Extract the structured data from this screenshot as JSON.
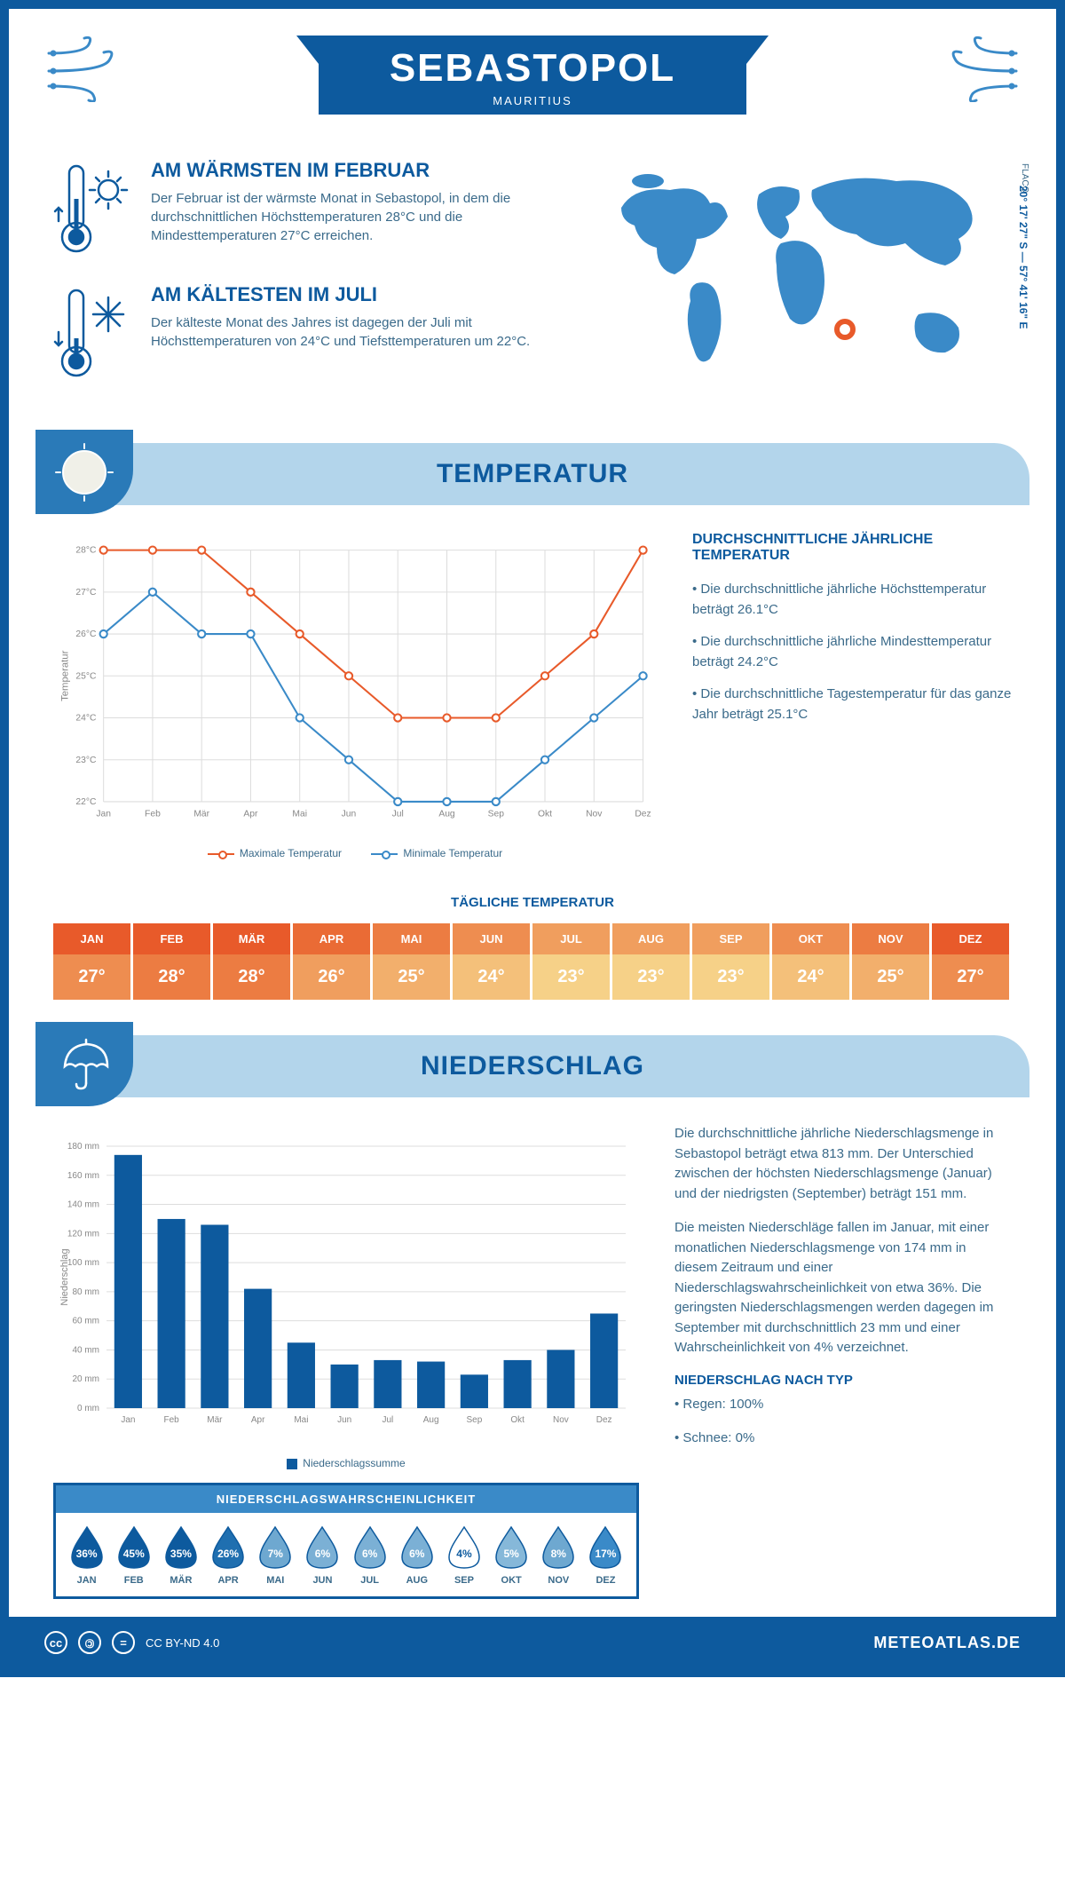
{
  "header": {
    "city": "SEBASTOPOL",
    "country": "MAURITIUS",
    "coords": "20° 17' 27\" S — 57° 41' 16\" E",
    "region": "FLACQ"
  },
  "facts": {
    "warm": {
      "title": "AM WÄRMSTEN IM FEBRUAR",
      "text": "Der Februar ist der wärmste Monat in Sebastopol, in dem die durchschnittlichen Höchsttemperaturen 28°C und die Mindesttemperaturen 27°C erreichen."
    },
    "cold": {
      "title": "AM KÄLTESTEN IM JULI",
      "text": "Der kälteste Monat des Jahres ist dagegen der Juli mit Höchsttemperaturen von 24°C und Tiefsttemperaturen um 22°C."
    }
  },
  "tempSection": {
    "title": "TEMPERATUR",
    "infoTitle": "DURCHSCHNITTLICHE JÄHRLICHE TEMPERATUR",
    "bullets": [
      "• Die durchschnittliche jährliche Höchsttemperatur beträgt 26.1°C",
      "• Die durchschnittliche jährliche Mindesttemperatur beträgt 24.2°C",
      "• Die durchschnittliche Tagestemperatur für das ganze Jahr beträgt 25.1°C"
    ],
    "legend": {
      "max": "Maximale Temperatur",
      "min": "Minimale Temperatur"
    },
    "yAxisTitle": "Temperatur",
    "chart": {
      "type": "line",
      "months": [
        "Jan",
        "Feb",
        "Mär",
        "Apr",
        "Mai",
        "Jun",
        "Jul",
        "Aug",
        "Sep",
        "Okt",
        "Nov",
        "Dez"
      ],
      "maxSeries": [
        28,
        28,
        28,
        27,
        26,
        25,
        24,
        24,
        24,
        25,
        26,
        28
      ],
      "minSeries": [
        26,
        27,
        26,
        26,
        24,
        23,
        22,
        22,
        22,
        23,
        24,
        25
      ],
      "maxColor": "#e85a2a",
      "minColor": "#3a8ac8",
      "ylim": [
        22,
        28
      ],
      "ytick_step": 1,
      "grid_color": "#dddddd",
      "line_width": 2,
      "marker": "circle-open"
    },
    "dailyTitle": "TÄGLICHE TEMPERATUR",
    "daily": {
      "months": [
        "JAN",
        "FEB",
        "MÄR",
        "APR",
        "MAI",
        "JUN",
        "JUL",
        "AUG",
        "SEP",
        "OKT",
        "NOV",
        "DEZ"
      ],
      "values": [
        "27°",
        "28°",
        "28°",
        "26°",
        "25°",
        "24°",
        "23°",
        "23°",
        "23°",
        "24°",
        "25°",
        "27°"
      ],
      "headColors": [
        "#e85a2a",
        "#e85a2a",
        "#e85a2a",
        "#ea6b35",
        "#ec7c42",
        "#ee8d50",
        "#f09e5e",
        "#f09e5e",
        "#f09e5e",
        "#ee8d50",
        "#ec7c42",
        "#e85a2a"
      ],
      "valColors": [
        "#ee8d50",
        "#ec7c42",
        "#ec7c42",
        "#f09e5e",
        "#f2af6c",
        "#f4c07a",
        "#f6d188",
        "#f6d188",
        "#f6d188",
        "#f4c07a",
        "#f2af6c",
        "#ee8d50"
      ]
    }
  },
  "precipSection": {
    "title": "NIEDERSCHLAG",
    "paragraphs": [
      "Die durchschnittliche jährliche Niederschlagsmenge in Sebastopol beträgt etwa 813 mm. Der Unterschied zwischen der höchsten Niederschlagsmenge (Januar) und der niedrigsten (September) beträgt 151 mm.",
      "Die meisten Niederschläge fallen im Januar, mit einer monatlichen Niederschlagsmenge von 174 mm in diesem Zeitraum und einer Niederschlagswahrscheinlichkeit von etwa 36%. Die geringsten Niederschlagsmengen werden dagegen im September mit durchschnittlich 23 mm und einer Wahrscheinlichkeit von 4% verzeichnet."
    ],
    "typeTitle": "NIEDERSCHLAG NACH TYP",
    "typeBullets": [
      "• Regen: 100%",
      "• Schnee: 0%"
    ],
    "yAxisTitle": "Niederschlag",
    "chart": {
      "type": "bar",
      "months": [
        "Jan",
        "Feb",
        "Mär",
        "Apr",
        "Mai",
        "Jun",
        "Jul",
        "Aug",
        "Sep",
        "Okt",
        "Nov",
        "Dez"
      ],
      "values": [
        174,
        130,
        126,
        82,
        45,
        30,
        33,
        32,
        23,
        33,
        40,
        65
      ],
      "bar_color": "#0d5a9e",
      "ylim": [
        0,
        180
      ],
      "ytick_step": 20,
      "grid_color": "#dddddd",
      "legend": "Niederschlagssumme"
    },
    "probTitle": "NIEDERSCHLAGSWAHRSCHEINLICHKEIT",
    "prob": {
      "months": [
        "JAN",
        "FEB",
        "MÄR",
        "APR",
        "MAI",
        "JUN",
        "JUL",
        "AUG",
        "SEP",
        "OKT",
        "NOV",
        "DEZ"
      ],
      "values": [
        "36%",
        "45%",
        "35%",
        "26%",
        "7%",
        "6%",
        "6%",
        "6%",
        "4%",
        "5%",
        "8%",
        "17%"
      ],
      "fillColors": [
        "#0d5a9e",
        "#0d5a9e",
        "#0d5a9e",
        "#1f6fb0",
        "#6ea8d0",
        "#7bb0d5",
        "#7bb0d5",
        "#7bb0d5",
        "#ffffff",
        "#86b8d9",
        "#6ea8d0",
        "#3a8ac8"
      ],
      "textColors": [
        "#fff",
        "#fff",
        "#fff",
        "#fff",
        "#fff",
        "#fff",
        "#fff",
        "#fff",
        "#0d5a9e",
        "#fff",
        "#fff",
        "#fff"
      ]
    }
  },
  "footer": {
    "license": "CC BY-ND 4.0",
    "site": "METEOATLAS.DE"
  },
  "colors": {
    "primary": "#0d5a9e",
    "lightBlue": "#b3d5eb",
    "midBlue": "#3a8ac8",
    "orange": "#e85a2a"
  }
}
